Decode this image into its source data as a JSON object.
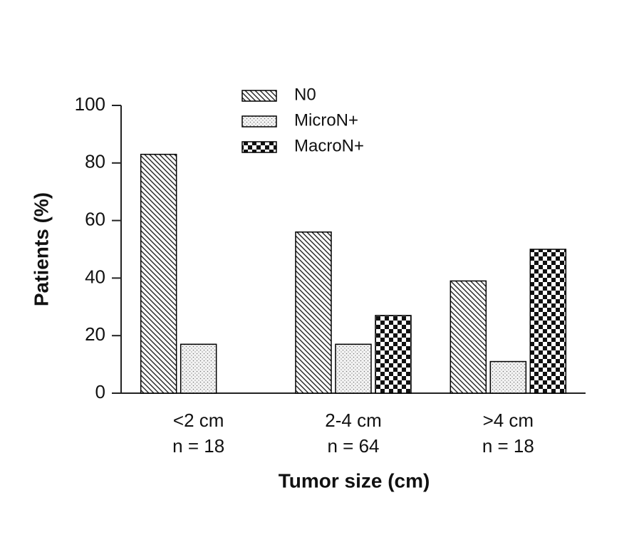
{
  "chart_data": {
    "type": "bar",
    "xlabel": "Tumor size (cm)",
    "ylabel": "Patients (%)",
    "categories": [
      "<2 cm",
      "2-4 cm",
      ">4 cm"
    ],
    "category_sublabels": [
      "n = 18",
      "n = 64",
      "n = 18"
    ],
    "series": [
      {
        "name": "N0",
        "color": "#000000",
        "pattern": "hatch",
        "values": [
          83,
          56,
          39
        ]
      },
      {
        "name": "MicroN+",
        "color": "#000000",
        "pattern": "dots",
        "values": [
          17,
          17,
          11
        ]
      },
      {
        "name": "MacroN+",
        "color": "#000000",
        "pattern": "checker",
        "values": [
          0,
          27,
          50
        ]
      }
    ],
    "ylim": [
      0,
      100
    ],
    "yticks": [
      0,
      20,
      40,
      60,
      80,
      100
    ],
    "grid": false,
    "legend": "top"
  }
}
